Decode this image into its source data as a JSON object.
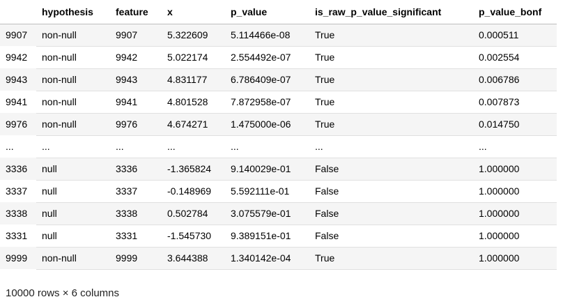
{
  "table": {
    "columns": [
      "",
      "hypothesis",
      "feature",
      "x",
      "p_value",
      "is_raw_p_value_significant",
      "p_value_bonf"
    ],
    "rows": [
      [
        "9907",
        "non-null",
        "9907",
        "5.322609",
        "5.114466e-08",
        "True",
        "0.000511"
      ],
      [
        "9942",
        "non-null",
        "9942",
        "5.022174",
        "2.554492e-07",
        "True",
        "0.002554"
      ],
      [
        "9943",
        "non-null",
        "9943",
        "4.831177",
        "6.786409e-07",
        "True",
        "0.006786"
      ],
      [
        "9941",
        "non-null",
        "9941",
        "4.801528",
        "7.872958e-07",
        "True",
        "0.007873"
      ],
      [
        "9976",
        "non-null",
        "9976",
        "4.674271",
        "1.475000e-06",
        "True",
        "0.014750"
      ],
      [
        "...",
        "...",
        "...",
        "...",
        "...",
        "...",
        "..."
      ],
      [
        "3336",
        "null",
        "3336",
        "-1.365824",
        "9.140029e-01",
        "False",
        "1.000000"
      ],
      [
        "3337",
        "null",
        "3337",
        "-0.148969",
        "5.592111e-01",
        "False",
        "1.000000"
      ],
      [
        "3338",
        "null",
        "3338",
        "0.502784",
        "3.075579e-01",
        "False",
        "1.000000"
      ],
      [
        "3331",
        "null",
        "3331",
        "-1.545730",
        "9.389151e-01",
        "False",
        "1.000000"
      ],
      [
        "9999",
        "non-null",
        "9999",
        "3.644388",
        "1.340142e-04",
        "True",
        "1.000000"
      ]
    ]
  },
  "shape_text": "10000 rows × 6 columns"
}
